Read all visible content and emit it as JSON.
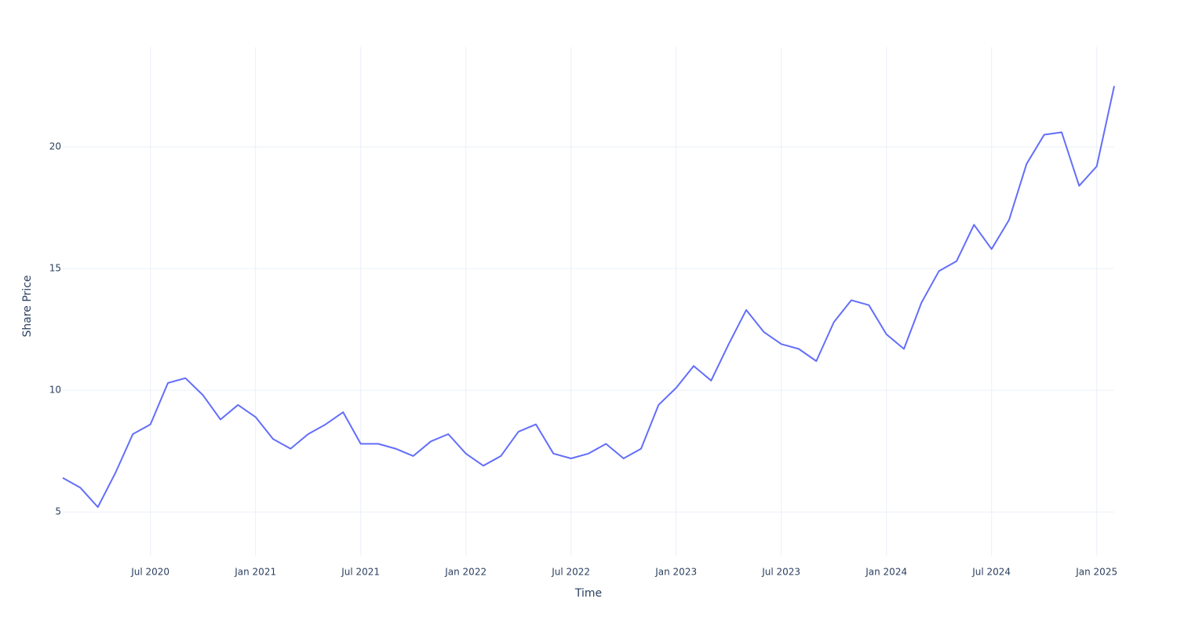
{
  "chart_data": {
    "type": "line",
    "x_label": "Time",
    "y_label": "Share Price",
    "x": [
      "2020-02",
      "2020-03",
      "2020-04",
      "2020-05",
      "2020-06",
      "2020-07",
      "2020-08",
      "2020-09",
      "2020-10",
      "2020-11",
      "2020-12",
      "2021-01",
      "2021-02",
      "2021-03",
      "2021-04",
      "2021-05",
      "2021-06",
      "2021-07",
      "2021-08",
      "2021-09",
      "2021-10",
      "2021-11",
      "2021-12",
      "2022-01",
      "2022-02",
      "2022-03",
      "2022-04",
      "2022-05",
      "2022-06",
      "2022-07",
      "2022-08",
      "2022-09",
      "2022-10",
      "2022-11",
      "2022-12",
      "2023-01",
      "2023-02",
      "2023-03",
      "2023-04",
      "2023-05",
      "2023-06",
      "2023-07",
      "2023-08",
      "2023-09",
      "2023-10",
      "2023-11",
      "2023-12",
      "2024-01",
      "2024-02",
      "2024-03",
      "2024-04",
      "2024-05",
      "2024-06",
      "2024-07",
      "2024-08",
      "2024-09",
      "2024-10",
      "2024-11",
      "2024-12",
      "2025-01",
      "2025-02"
    ],
    "series": [
      {
        "color": "#636efa",
        "values": [
          6.4,
          6.0,
          5.2,
          6.6,
          8.2,
          8.6,
          10.3,
          10.5,
          9.8,
          8.8,
          9.4,
          8.9,
          8.0,
          7.6,
          8.2,
          8.6,
          9.1,
          7.8,
          7.8,
          7.6,
          7.3,
          7.9,
          8.2,
          7.4,
          6.9,
          7.3,
          8.3,
          8.6,
          7.4,
          7.2,
          7.4,
          7.8,
          7.2,
          7.6,
          9.4,
          10.1,
          11.0,
          10.4,
          11.9,
          13.3,
          12.4,
          11.9,
          11.7,
          11.2,
          12.8,
          13.7,
          13.5,
          12.3,
          11.7,
          13.6,
          14.9,
          15.3,
          16.8,
          15.8,
          17.0,
          19.3,
          20.5,
          20.6,
          18.4,
          19.2,
          22.5
        ]
      }
    ],
    "xlim": [
      "2020-02",
      "2025-02"
    ],
    "xticks": [
      {
        "value": "2020-07",
        "label": "Jul 2020"
      },
      {
        "value": "2021-01",
        "label": "Jan 2021"
      },
      {
        "value": "2021-07",
        "label": "Jul 2021"
      },
      {
        "value": "2022-01",
        "label": "Jan 2022"
      },
      {
        "value": "2022-07",
        "label": "Jul 2022"
      },
      {
        "value": "2023-01",
        "label": "Jan 2023"
      },
      {
        "value": "2023-07",
        "label": "Jul 2023"
      },
      {
        "value": "2024-01",
        "label": "Jan 2024"
      },
      {
        "value": "2024-07",
        "label": "Jul 2024"
      },
      {
        "value": "2025-01",
        "label": "Jan 2025"
      }
    ],
    "ylim": [
      3.2,
      24.1
    ],
    "yticks": [
      5,
      10,
      15,
      20
    ],
    "grid": true
  }
}
